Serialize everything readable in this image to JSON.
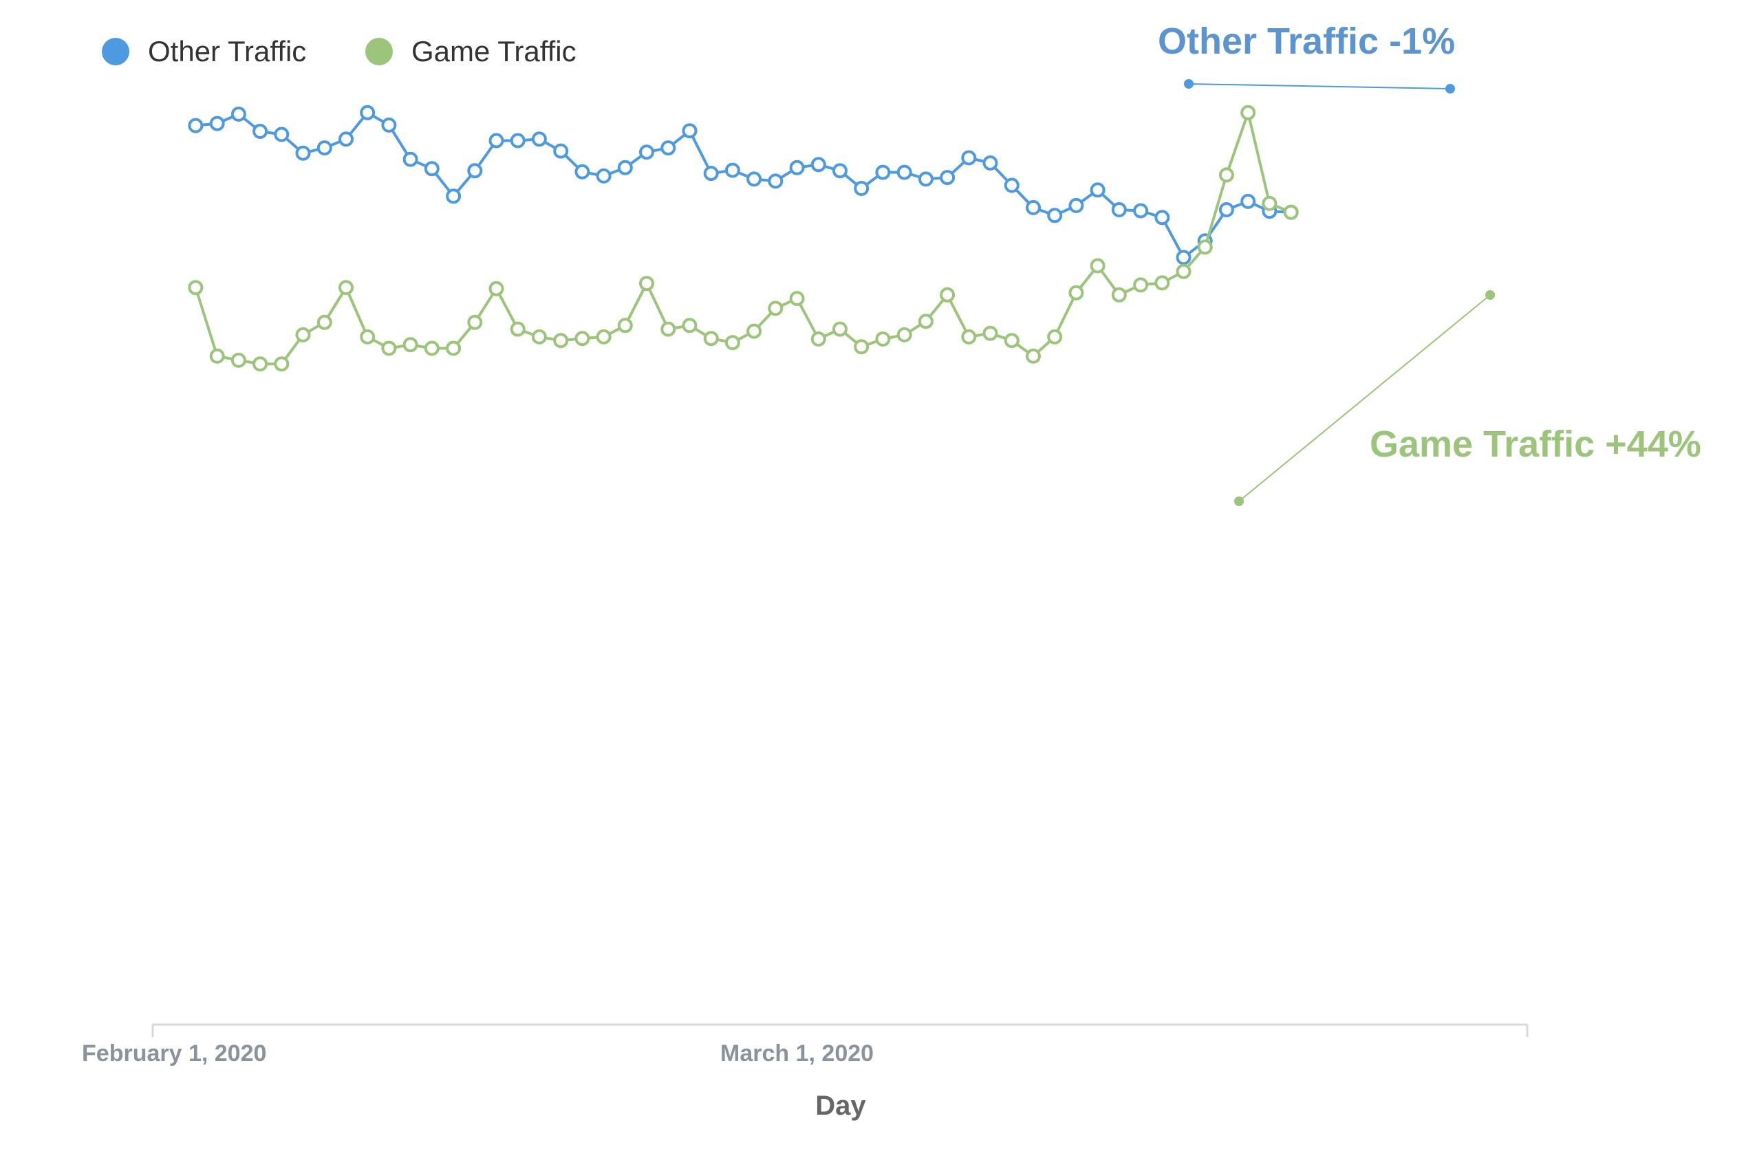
{
  "chart_data": {
    "type": "line",
    "title": "",
    "xlabel": "Day",
    "ylabel": "",
    "x_tick_labels": [
      {
        "label": "February 1, 2020",
        "date": "2020-02-01"
      },
      {
        "label": "March 1, 2020",
        "date": "2020-03-01"
      }
    ],
    "x_range": [
      "2020-01-31",
      "2020-04-04"
    ],
    "y_range": [
      0,
      100
    ],
    "grid": false,
    "legend_position": "top-left",
    "series": [
      {
        "name": "Other Traffic",
        "color": "#4e9ae0",
        "start_date": "2020-02-02",
        "values": [
          97.0,
          97.4,
          99.2,
          95.9,
          95.3,
          91.7,
          92.7,
          94.4,
          99.5,
          97.1,
          90.5,
          88.7,
          83.4,
          88.3,
          94.1,
          94.1,
          94.4,
          92.1,
          88.1,
          87.3,
          88.9,
          91.9,
          92.7,
          96.0,
          87.8,
          88.4,
          86.7,
          86.3,
          88.9,
          89.5,
          88.3,
          84.9,
          88.0,
          88.0,
          86.7,
          87.0,
          90.8,
          89.8,
          85.5,
          81.2,
          79.7,
          81.6,
          84.6,
          80.8,
          80.6,
          79.3,
          71.6,
          74.8,
          80.8,
          82.4,
          80.5,
          80.3
        ]
      },
      {
        "name": "Game Traffic",
        "color": "#9cc47a",
        "start_date": "2020-02-02",
        "values": [
          65.8,
          52.6,
          51.8,
          51.1,
          51.1,
          56.7,
          59.1,
          65.8,
          56.3,
          54.1,
          54.8,
          54.1,
          54.1,
          59.1,
          65.6,
          57.8,
          56.3,
          55.6,
          56.0,
          56.3,
          58.5,
          66.6,
          57.8,
          58.5,
          56.0,
          55.2,
          57.4,
          61.8,
          63.7,
          55.9,
          57.8,
          54.4,
          55.9,
          56.7,
          59.3,
          64.4,
          56.3,
          57.0,
          55.6,
          52.6,
          56.3,
          64.8,
          70.0,
          64.4,
          66.3,
          66.7,
          68.9,
          73.6,
          87.5,
          99.5,
          82.0,
          80.3
        ]
      }
    ],
    "annotations": [
      {
        "text": "Other Traffic -1%",
        "series": "Other Traffic"
      },
      {
        "text": "Game Traffic +44%",
        "series": "Game Traffic"
      }
    ]
  }
}
